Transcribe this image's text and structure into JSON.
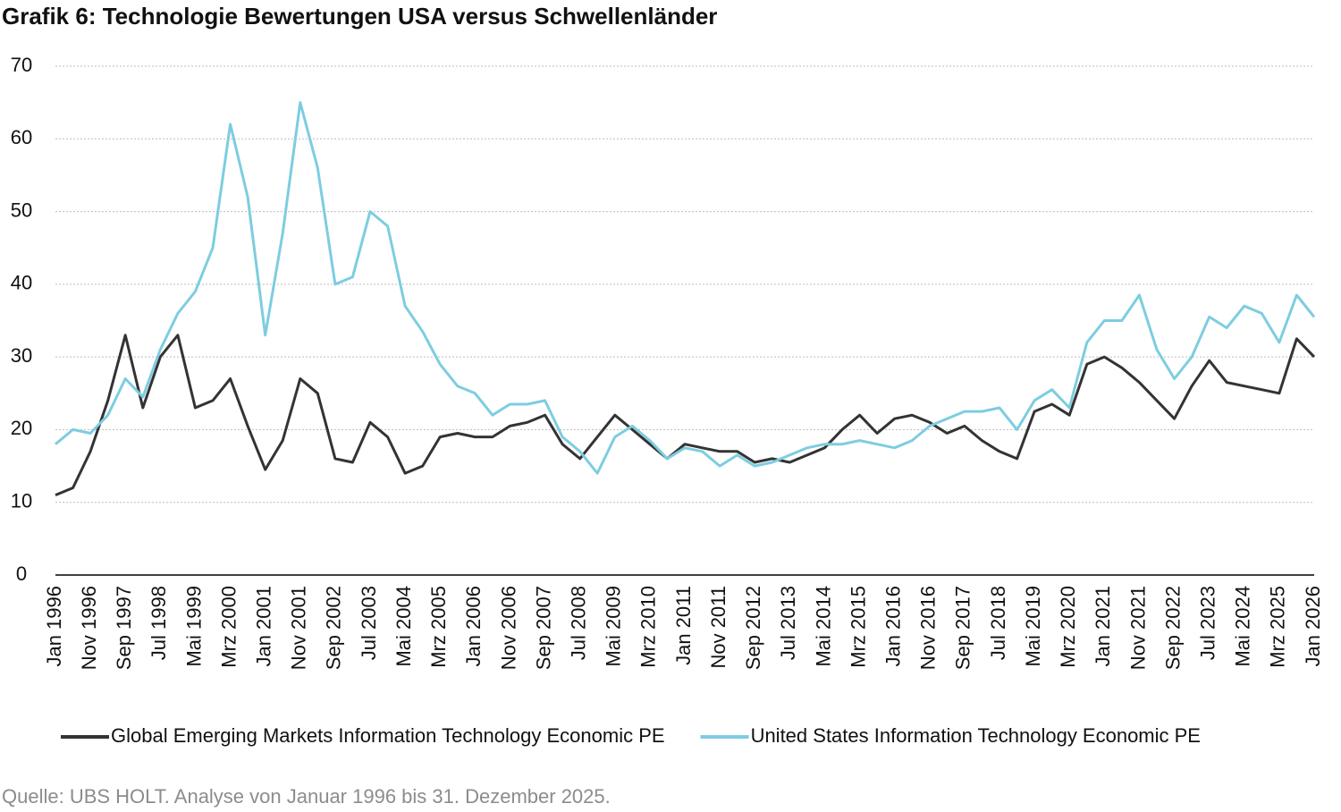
{
  "chart_data": {
    "type": "line",
    "title": "Grafik 6: Technologie Bewertungen USA versus Schwellenländer",
    "source": "Quelle: UBS HOLT. Analyse von Januar 1996 bis 31. Dezember 2025.",
    "categories": [
      "Jan 1996",
      null,
      "Nov 1996",
      null,
      "Sep 1997",
      null,
      "Jul 1998",
      null,
      "Mai 1999",
      null,
      "Mrz 2000",
      null,
      "Jan 2001",
      null,
      "Nov 2001",
      null,
      "Sep 2002",
      null,
      "Jul 2003",
      null,
      "Mai 2004",
      null,
      "Mrz 2005",
      null,
      "Jan 2006",
      null,
      "Nov 2006",
      null,
      "Sep 2007",
      null,
      "Jul 2008",
      null,
      "Mai 2009",
      null,
      "Mrz 2010",
      null,
      "Jan 2011",
      null,
      "Nov 2011",
      null,
      "Sep 2012",
      null,
      "Jul 2013",
      null,
      "Mai 2014",
      null,
      "Mrz 2015",
      null,
      "Jan 2016",
      null,
      "Nov 2016",
      null,
      "Sep 2017",
      null,
      "Jul 2018",
      null,
      "Mai 2019",
      null,
      "Mrz 2020",
      null,
      "Jan 2021",
      null,
      "Nov 2021",
      null,
      "Sep 2022",
      null,
      "Jul 2023",
      null,
      "Mai 2024",
      null,
      "Mrz 2025",
      null,
      "Jan 2026"
    ],
    "series": [
      {
        "name": "Global Emerging Markets Information Technology Economic PE",
        "color": "#333333",
        "values": [
          11,
          12,
          17,
          24,
          33,
          23,
          30,
          33,
          23,
          24,
          27,
          20.5,
          14.5,
          18.5,
          27,
          25,
          16,
          15.5,
          21,
          19,
          14,
          15,
          19,
          19.5,
          19,
          19,
          20.5,
          21,
          22,
          18,
          16,
          19,
          22,
          20,
          18,
          16,
          18,
          17.5,
          17,
          17,
          15.5,
          16,
          15.5,
          16.5,
          17.5,
          20,
          22,
          19.5,
          21.5,
          22,
          21,
          19.5,
          20.5,
          18.5,
          17,
          16,
          22.5,
          23.5,
          22,
          29,
          30,
          28.5,
          26.5,
          24,
          21.5,
          26,
          29.5,
          26.5,
          26,
          25.5,
          25,
          32.5,
          30
        ]
      },
      {
        "name": "United States Information Technology Economic PE",
        "color": "#7dcde0",
        "values": [
          18,
          20,
          19.5,
          22,
          27,
          24.5,
          31,
          36,
          39,
          45,
          62,
          52,
          33,
          47,
          65,
          56,
          40,
          41,
          50,
          48,
          37,
          33.5,
          29,
          26,
          25,
          22,
          23.5,
          23.5,
          24,
          19,
          17,
          14,
          19,
          20.5,
          18.5,
          16,
          17.5,
          17,
          15,
          16.5,
          15,
          15.5,
          16.5,
          17.5,
          18,
          18,
          18.5,
          18,
          17.5,
          18.5,
          20.5,
          21.5,
          22.5,
          22.5,
          23,
          20,
          24,
          25.5,
          23,
          32,
          35,
          35,
          38.5,
          31,
          27,
          30,
          35.5,
          34,
          37,
          36,
          32,
          38.5,
          35.5
        ]
      }
    ],
    "ylim": [
      0,
      70
    ],
    "yticks": [
      0,
      10,
      20,
      30,
      40,
      50,
      60,
      70
    ],
    "grid": true,
    "legend": "bottom"
  }
}
